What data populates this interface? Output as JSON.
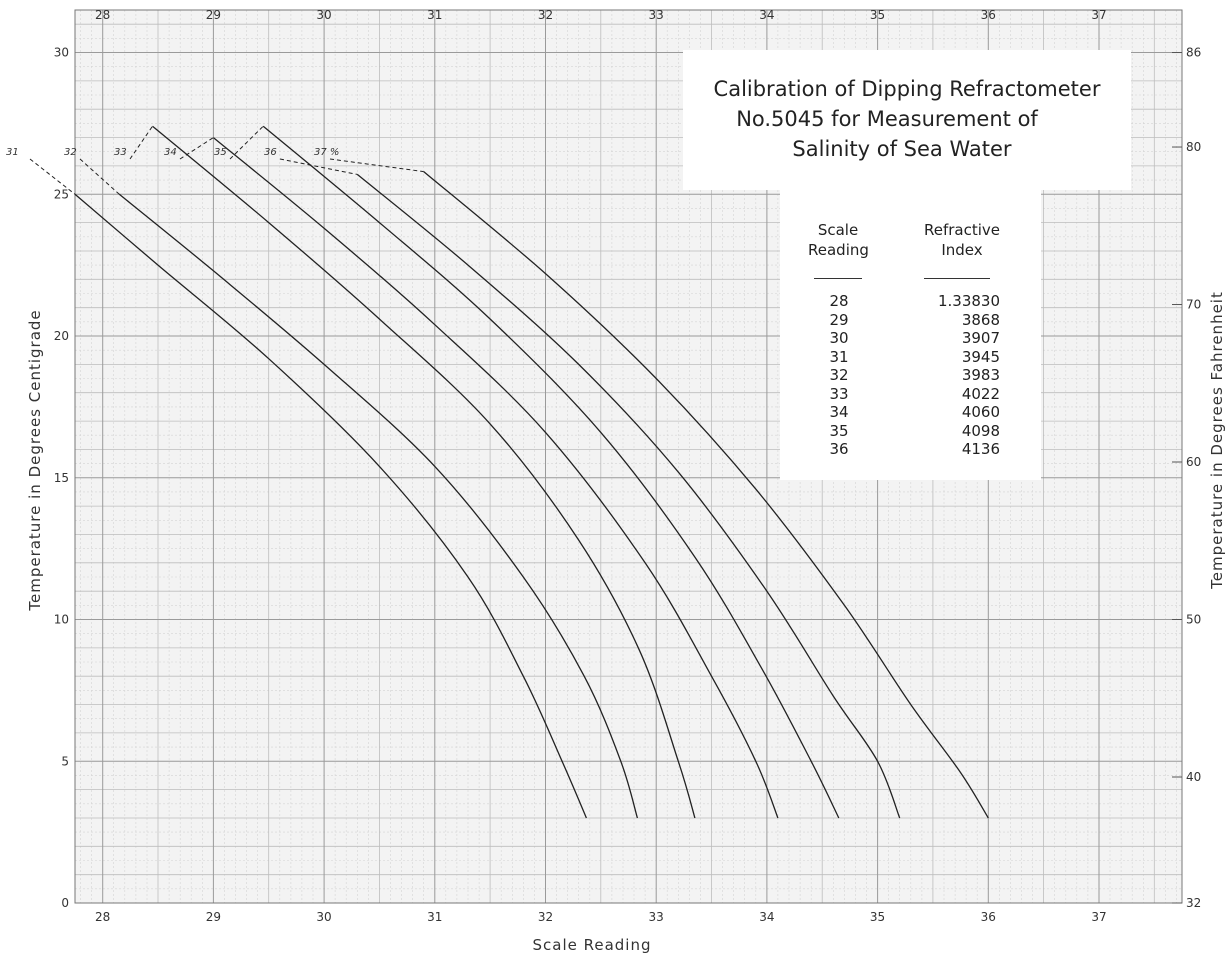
{
  "chart_data": {
    "type": "line",
    "title": "Calibration of Dipping Refractometer No.5045 for Measurement of Salinity of Sea Water",
    "title_lines": [
      "Calibration of Dipping Refractometer",
      "No.5045 for Measurement of",
      "Salinity of Sea Water"
    ],
    "xlabel": "Scale Reading",
    "ylabel": "Temperature in Degrees Centigrade",
    "y2label": "Temperature in Degrees Fahrenheit",
    "xlim": [
      27.75,
      37.75
    ],
    "ylim": [
      0,
      31.5
    ],
    "y2lim": [
      32,
      88.7
    ],
    "x_ticks": [
      "28",
      "29",
      "30",
      "31",
      "32",
      "33",
      "34",
      "35",
      "36",
      "37"
    ],
    "y_ticks": [
      "0",
      "5",
      "10",
      "15",
      "20",
      "25",
      "30"
    ],
    "y2_ticks": [
      "32",
      "40",
      "50",
      "60",
      "70",
      "80",
      "86"
    ],
    "grid": true,
    "series_label_suffix": "%",
    "series": [
      {
        "name": "31",
        "dashed_to": [
          27.0,
          27.7
        ],
        "points": [
          [
            27.75,
            25
          ],
          [
            28.5,
            22.5
          ],
          [
            29.5,
            19.2
          ],
          [
            30.5,
            15.4
          ],
          [
            31.3,
            11.5
          ],
          [
            31.8,
            8
          ],
          [
            32.15,
            5
          ],
          [
            32.37,
            3
          ]
        ]
      },
      {
        "name": "32",
        "dashed_to": [
          27.7,
          26.6
        ],
        "points": [
          [
            28.15,
            25
          ],
          [
            29.0,
            22.3
          ],
          [
            30.0,
            19.0
          ],
          [
            31.0,
            15.4
          ],
          [
            31.8,
            11.5
          ],
          [
            32.35,
            8
          ],
          [
            32.68,
            5
          ],
          [
            32.83,
            3
          ]
        ]
      },
      {
        "name": "33",
        "dashed_to": [
          28.45,
          27.4
        ],
        "points": [
          [
            28.45,
            27.4
          ],
          [
            29.5,
            24.0
          ],
          [
            30.5,
            20.6
          ],
          [
            31.5,
            16.9
          ],
          [
            32.3,
            12.8
          ],
          [
            32.85,
            8.9
          ],
          [
            33.2,
            5
          ],
          [
            33.35,
            3
          ]
        ]
      },
      {
        "name": "34",
        "dashed_to": [
          29.0,
          27.5
        ],
        "points": [
          [
            29.0,
            27.0
          ],
          [
            30.0,
            23.8
          ],
          [
            31.0,
            20.4
          ],
          [
            32.0,
            16.6
          ],
          [
            32.9,
            12.0
          ],
          [
            33.5,
            8
          ],
          [
            33.9,
            5
          ],
          [
            34.1,
            3
          ]
        ]
      },
      {
        "name": "35",
        "dashed_to": [
          29.45,
          27.4
        ],
        "points": [
          [
            29.45,
            27.4
          ],
          [
            30.5,
            24.0
          ],
          [
            31.5,
            20.6
          ],
          [
            32.5,
            16.6
          ],
          [
            33.35,
            12.2
          ],
          [
            33.95,
            8.3
          ],
          [
            34.4,
            5
          ],
          [
            34.65,
            3
          ]
        ]
      },
      {
        "name": "36",
        "dashed_to": [
          30.3,
          25.7
        ],
        "points": [
          [
            30.3,
            25.7
          ],
          [
            31.3,
            22.5
          ],
          [
            32.3,
            19.0
          ],
          [
            33.2,
            15.2
          ],
          [
            34.0,
            11.0
          ],
          [
            34.6,
            7.3
          ],
          [
            35.0,
            5
          ],
          [
            35.2,
            3
          ]
        ]
      },
      {
        "name": "37",
        "dashed_to": [
          30.9,
          25.8
        ],
        "points": [
          [
            30.9,
            25.8
          ],
          [
            32.0,
            22.2
          ],
          [
            33.0,
            18.5
          ],
          [
            33.9,
            14.6
          ],
          [
            34.7,
            10.5
          ],
          [
            35.3,
            7.0
          ],
          [
            35.75,
            4.6
          ],
          [
            36.0,
            3
          ]
        ]
      }
    ],
    "table": {
      "headers": [
        "Scale Reading",
        "Refractive Index"
      ],
      "rows": [
        [
          "28",
          "1.33830"
        ],
        [
          "29",
          "3868"
        ],
        [
          "30",
          "3907"
        ],
        [
          "31",
          "3945"
        ],
        [
          "32",
          "3983"
        ],
        [
          "33",
          "4022"
        ],
        [
          "34",
          "4060"
        ],
        [
          "35",
          "4098"
        ],
        [
          "36",
          "4136"
        ]
      ]
    }
  },
  "colors": {
    "grid_minor": "#d4d4d4",
    "grid_major": "#9a9a9a",
    "curve": "#222222",
    "background": "#ffffff"
  }
}
